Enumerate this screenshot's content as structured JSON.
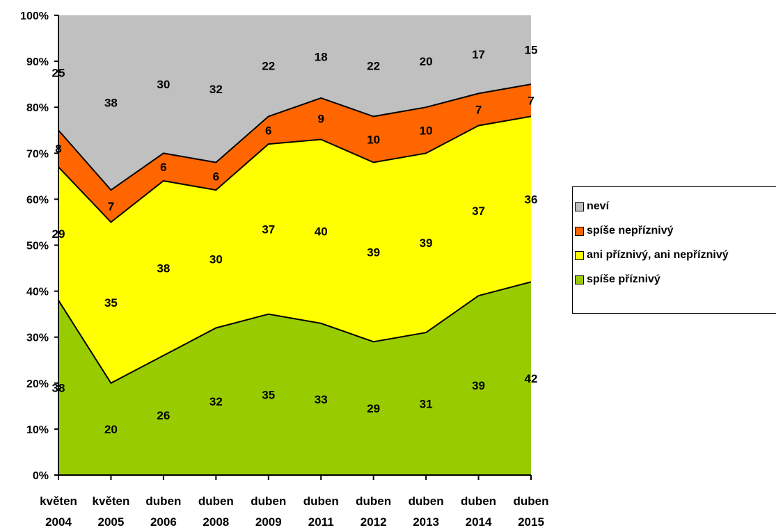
{
  "chart_data": {
    "type": "area",
    "stacked": "percent",
    "categories": [
      [
        "květen",
        "2004"
      ],
      [
        "květen",
        "2005"
      ],
      [
        "duben",
        "2006"
      ],
      [
        "duben",
        "2008"
      ],
      [
        "duben",
        "2009"
      ],
      [
        "duben",
        "2011"
      ],
      [
        "duben",
        "2012"
      ],
      [
        "duben",
        "2013"
      ],
      [
        "duben",
        "2014"
      ],
      [
        "duben",
        "2015"
      ]
    ],
    "series": [
      {
        "name": "spíše příznivý",
        "color": "#99cc00",
        "values": [
          38,
          20,
          26,
          32,
          35,
          33,
          29,
          31,
          39,
          42
        ]
      },
      {
        "name": "ani příznivý, ani nepříznivý",
        "color": "#ffff00",
        "values": [
          29,
          35,
          38,
          30,
          37,
          40,
          39,
          39,
          37,
          36
        ]
      },
      {
        "name": "spíše nepříznivý",
        "color": "#ff6600",
        "values": [
          8,
          7,
          6,
          6,
          6,
          9,
          10,
          10,
          7,
          7
        ]
      },
      {
        "name": "neví",
        "color": "#c0c0c0",
        "values": [
          25,
          38,
          30,
          32,
          22,
          18,
          22,
          20,
          17,
          15
        ]
      }
    ],
    "yticks": [
      "0%",
      "10%",
      "20%",
      "30%",
      "40%",
      "50%",
      "60%",
      "70%",
      "80%",
      "90%",
      "100%"
    ],
    "ylim": [
      0,
      100
    ],
    "title": "",
    "xlabel": "",
    "ylabel": "",
    "grid": false,
    "legend_position": "right"
  },
  "legend": {
    "items": [
      {
        "label": "neví",
        "color": "#c0c0c0"
      },
      {
        "label": "spíše nepříznivý",
        "color": "#ff6600"
      },
      {
        "label": "ani příznivý, ani nepříznivý",
        "color": "#ffff00"
      },
      {
        "label": "spíše příznivý",
        "color": "#99cc00"
      }
    ]
  }
}
